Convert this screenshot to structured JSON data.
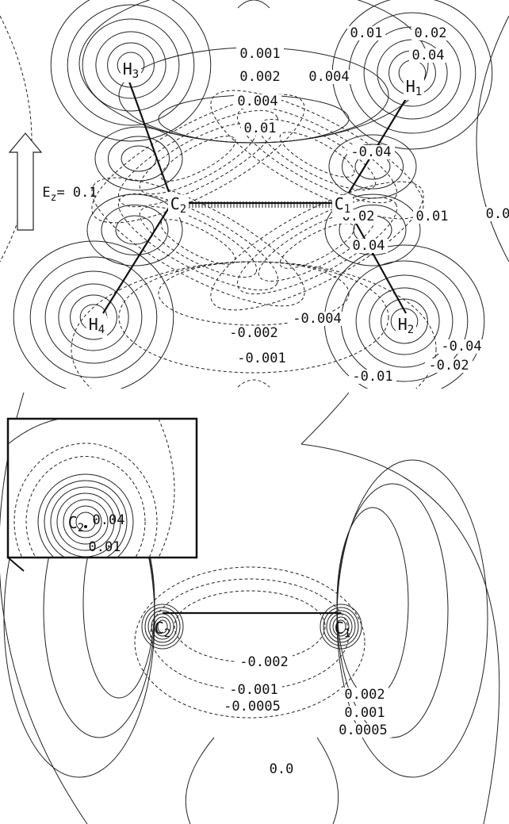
{
  "top_panel": {
    "contour_labels": [
      "0.001",
      "0.002",
      "0.004",
      "0.01",
      "0.01",
      "0.02",
      "0.04",
      "0.004",
      "-0.04",
      "0.02",
      "0.01",
      "0.0",
      "0.04",
      "-0.002",
      "-0.004",
      "-0.001",
      "-0.04",
      "-0.02",
      "-0.01"
    ],
    "atoms": [
      {
        "symbol": "H",
        "subscript": "3"
      },
      {
        "symbol": "H",
        "subscript": "1"
      },
      {
        "symbol": "H",
        "subscript": "4"
      },
      {
        "symbol": "H",
        "subscript": "2"
      },
      {
        "symbol": "C",
        "subscript": "2"
      },
      {
        "symbol": "C",
        "subscript": "1"
      }
    ],
    "field_label": {
      "symbol": "E",
      "subscript": "z",
      "value": "= 0.1"
    }
  },
  "bottom_panel": {
    "inset": {
      "atom": {
        "symbol": "C",
        "subscript": "2"
      },
      "contour_labels": [
        "0.04",
        "0.01"
      ]
    },
    "atoms": [
      {
        "symbol": "C",
        "subscript": "2"
      },
      {
        "symbol": "C",
        "subscript": "1"
      }
    ],
    "contour_labels": [
      "-0.002",
      "-0.001",
      "-0.0005",
      "0.002",
      "0.001",
      "0.0005",
      "0.0"
    ]
  }
}
